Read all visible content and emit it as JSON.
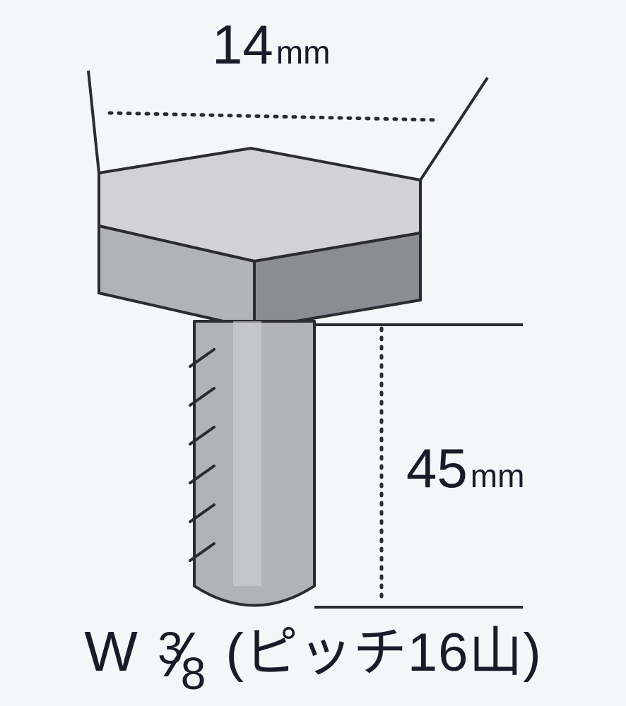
{
  "diagram": {
    "type": "technical-illustration",
    "subject": "hex-bolt",
    "background_color": "#f4f6f7",
    "line_color": "#2b2b32",
    "text_color": "#1a1a28",
    "fill_light": "#d2d2d6",
    "fill_mid": "#b2b3b8",
    "fill_dark": "#8c8d94",
    "line_width": 4,
    "dotted_dash": "3 10",
    "width_label": "14mm",
    "length_label": "45mm",
    "spec_prefix": "W",
    "spec_fraction_num": "3",
    "spec_fraction_den": "8",
    "spec_note": "(ピッチ16山)",
    "font_size_dim_num": 78,
    "font_size_dim_unit": 46,
    "font_size_spec": 80
  }
}
